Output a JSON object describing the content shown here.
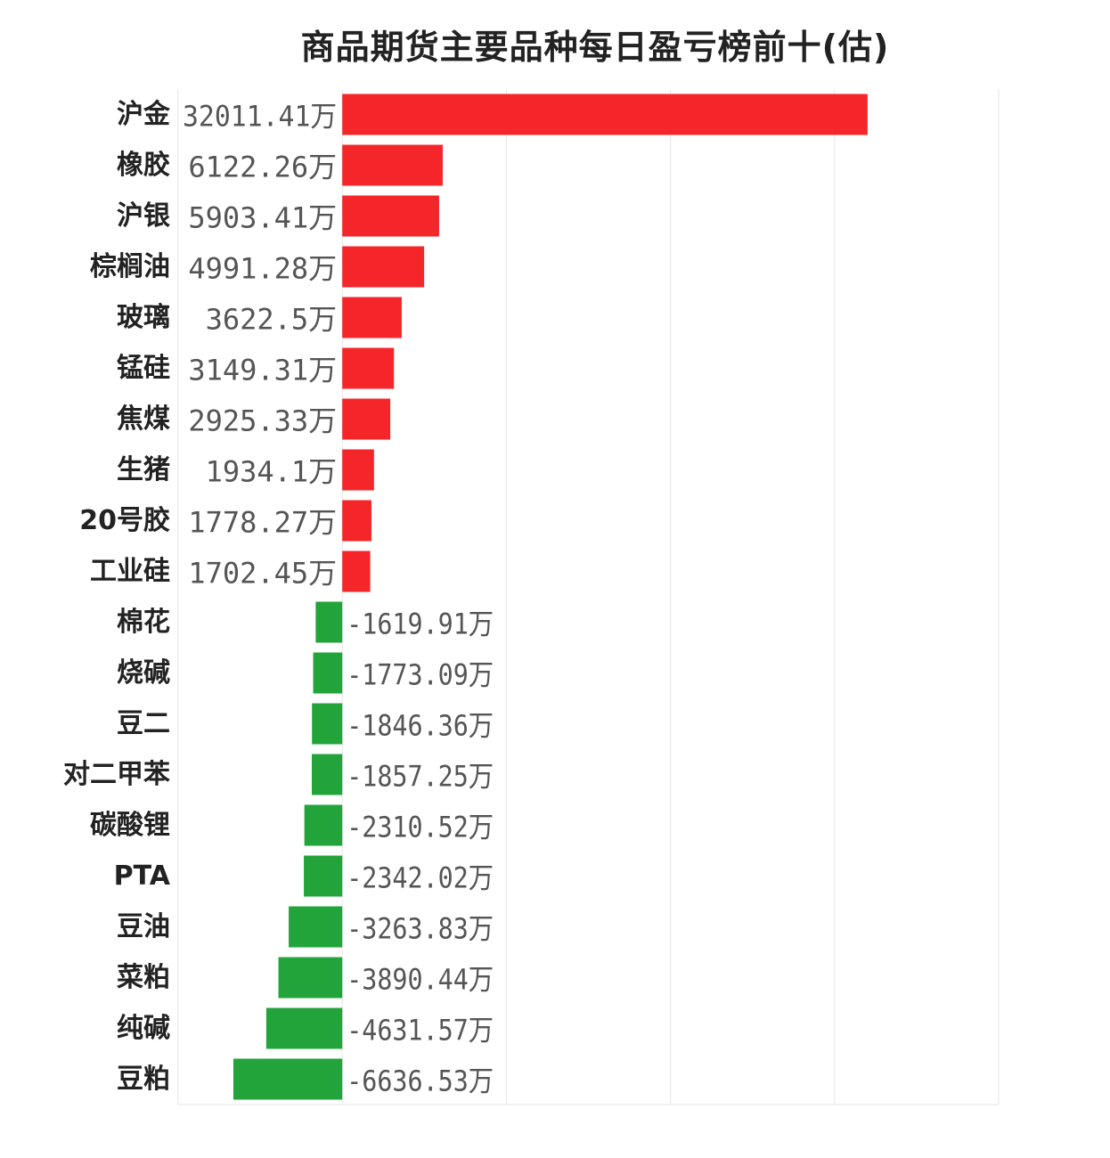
{
  "chart_data": {
    "type": "bar",
    "orientation": "horizontal",
    "title": "商品期货主要品种每日盈亏榜前十(估)",
    "unit": "万",
    "categories": [
      "沪金",
      "橡胶",
      "沪银",
      "棕榈油",
      "玻璃",
      "锰硅",
      "焦煤",
      "生猪",
      "20号胶",
      "工业硅",
      "棉花",
      "烧碱",
      "豆二",
      "对二甲苯",
      "碳酸锂",
      "PTA",
      "豆油",
      "菜粕",
      "纯碱",
      "豆粕"
    ],
    "values": [
      32011.41,
      6122.26,
      5903.41,
      4991.28,
      3622.5,
      3149.31,
      2925.33,
      1934.1,
      1778.27,
      1702.45,
      -1619.91,
      -1773.09,
      -1846.36,
      -1857.25,
      -2310.52,
      -2342.02,
      -3263.83,
      -3890.44,
      -4631.57,
      -6636.53
    ],
    "value_labels": [
      "32011.41万",
      "6122.26万",
      "5903.41万",
      "4991.28万",
      "3622.5万",
      "3149.31万",
      "2925.33万",
      "1934.1万",
      "1778.27万",
      "1702.45万",
      "-1619.91万",
      "-1773.09万",
      "-1846.36万",
      "-1857.25万",
      "-2310.52万",
      "-2342.02万",
      "-3263.83万",
      "-3890.44万",
      "-4631.57万",
      "-6636.53万"
    ],
    "xlim": [
      -10000,
      40000
    ],
    "grid": true,
    "colors": {
      "positive": "#f5262a",
      "negative": "#22a43b",
      "grid": "#e6e6e6"
    }
  }
}
